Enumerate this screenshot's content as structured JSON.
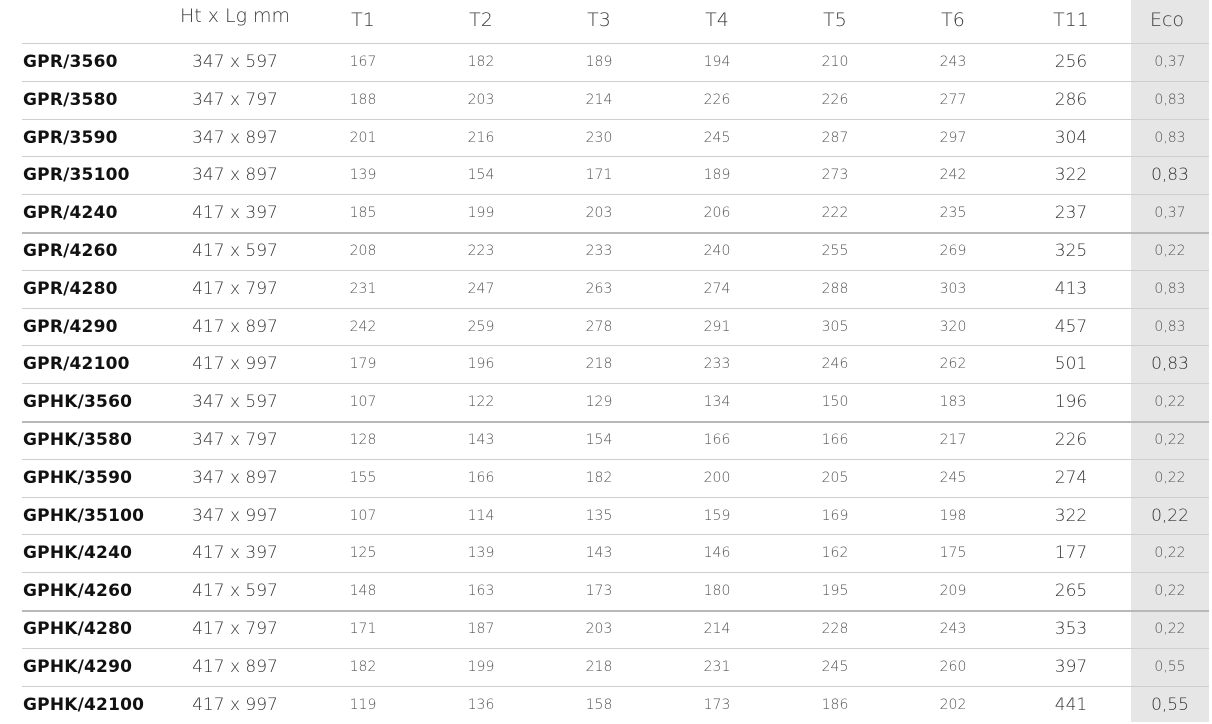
{
  "header": {
    "model": "",
    "dimensions": "Ht x Lg mm",
    "t1": "T1",
    "t2": "T2",
    "t3": "T3",
    "t4": "T4",
    "t5": "T5",
    "t6": "T6",
    "t11": "T11",
    "eco": "Eco"
  },
  "rows": [
    {
      "model": "GPR/3560",
      "dim": "347 x 597",
      "t1": "167",
      "t2": "182",
      "t3": "189",
      "t4": "194",
      "t5": "210",
      "t6": "243",
      "t11": "256",
      "eco": "0,37"
    },
    {
      "model": "GPR/3580",
      "dim": "347 x 797",
      "t1": "188",
      "t2": "203",
      "t3": "214",
      "t4": "226",
      "t5": "226",
      "t6": "277",
      "t11": "286",
      "eco": "0,83"
    },
    {
      "model": "GPR/3590",
      "dim": "347 x 897",
      "t1": "201",
      "t2": "216",
      "t3": "230",
      "t4": "245",
      "t5": "287",
      "t6": "297",
      "t11": "304",
      "eco": "0,83"
    },
    {
      "model": "GPR/35100",
      "dim": "347 x 897",
      "t1": "139",
      "t2": "154",
      "t3": "171",
      "t4": "189",
      "t5": "273",
      "t6": "242",
      "t11": "322",
      "eco": "0,83"
    },
    {
      "model": "GPR/4240",
      "dim": "417 x 397",
      "t1": "185",
      "t2": "199",
      "t3": "203",
      "t4": "206",
      "t5": "222",
      "t6": "235",
      "t11": "237",
      "eco": "0,37"
    },
    {
      "model": "GPR/4260",
      "dim": "417 x 597",
      "t1": "208",
      "t2": "223",
      "t3": "233",
      "t4": "240",
      "t5": "255",
      "t6": "269",
      "t11": "325",
      "eco": "0,22"
    },
    {
      "model": "GPR/4280",
      "dim": "417 x 797",
      "t1": "231",
      "t2": "247",
      "t3": "263",
      "t4": "274",
      "t5": "288",
      "t6": "303",
      "t11": "413",
      "eco": "0,83"
    },
    {
      "model": "GPR/4290",
      "dim": "417 x 897",
      "t1": "242",
      "t2": "259",
      "t3": "278",
      "t4": "291",
      "t5": "305",
      "t6": "320",
      "t11": "457",
      "eco": "0,83"
    },
    {
      "model": "GPR/42100",
      "dim": "417 x 997",
      "t1": "179",
      "t2": "196",
      "t3": "218",
      "t4": "233",
      "t5": "246",
      "t6": "262",
      "t11": "501",
      "eco": "0,83"
    },
    {
      "model": "GPHK/3560",
      "dim": "347 x 597",
      "t1": "107",
      "t2": "122",
      "t3": "129",
      "t4": "134",
      "t5": "150",
      "t6": "183",
      "t11": "196",
      "eco": "0,22"
    },
    {
      "model": "GPHK/3580",
      "dim": "347 x 797",
      "t1": "128",
      "t2": "143",
      "t3": "154",
      "t4": "166",
      "t5": "166",
      "t6": "217",
      "t11": "226",
      "eco": "0,22"
    },
    {
      "model": "GPHK/3590",
      "dim": "347 x 897",
      "t1": "155",
      "t2": "166",
      "t3": "182",
      "t4": "200",
      "t5": "205",
      "t6": "245",
      "t11": "274",
      "eco": "0,22"
    },
    {
      "model": "GPHK/35100",
      "dim": "347 x 997",
      "t1": "107",
      "t2": "114",
      "t3": "135",
      "t4": "159",
      "t5": "169",
      "t6": "198",
      "t11": "322",
      "eco": "0,22"
    },
    {
      "model": "GPHK/4240",
      "dim": "417 x 397",
      "t1": "125",
      "t2": "139",
      "t3": "143",
      "t4": "146",
      "t5": "162",
      "t6": "175",
      "t11": "177",
      "eco": "0,22"
    },
    {
      "model": "GPHK/4260",
      "dim": "417 x 597",
      "t1": "148",
      "t2": "163",
      "t3": "173",
      "t4": "180",
      "t5": "195",
      "t6": "209",
      "t11": "265",
      "eco": "0,22"
    },
    {
      "model": "GPHK/4280",
      "dim": "417 x 797",
      "t1": "171",
      "t2": "187",
      "t3": "203",
      "t4": "214",
      "t5": "228",
      "t6": "243",
      "t11": "353",
      "eco": "0,22"
    },
    {
      "model": "GPHK/4290",
      "dim": "417 x 897",
      "t1": "182",
      "t2": "199",
      "t3": "218",
      "t4": "231",
      "t5": "245",
      "t6": "260",
      "t11": "397",
      "eco": "0,55"
    },
    {
      "model": "GPHK/42100",
      "dim": "417 x 997",
      "t1": "119",
      "t2": "136",
      "t3": "158",
      "t4": "173",
      "t5": "186",
      "t6": "202",
      "t11": "441",
      "eco": "0,55"
    }
  ]
}
